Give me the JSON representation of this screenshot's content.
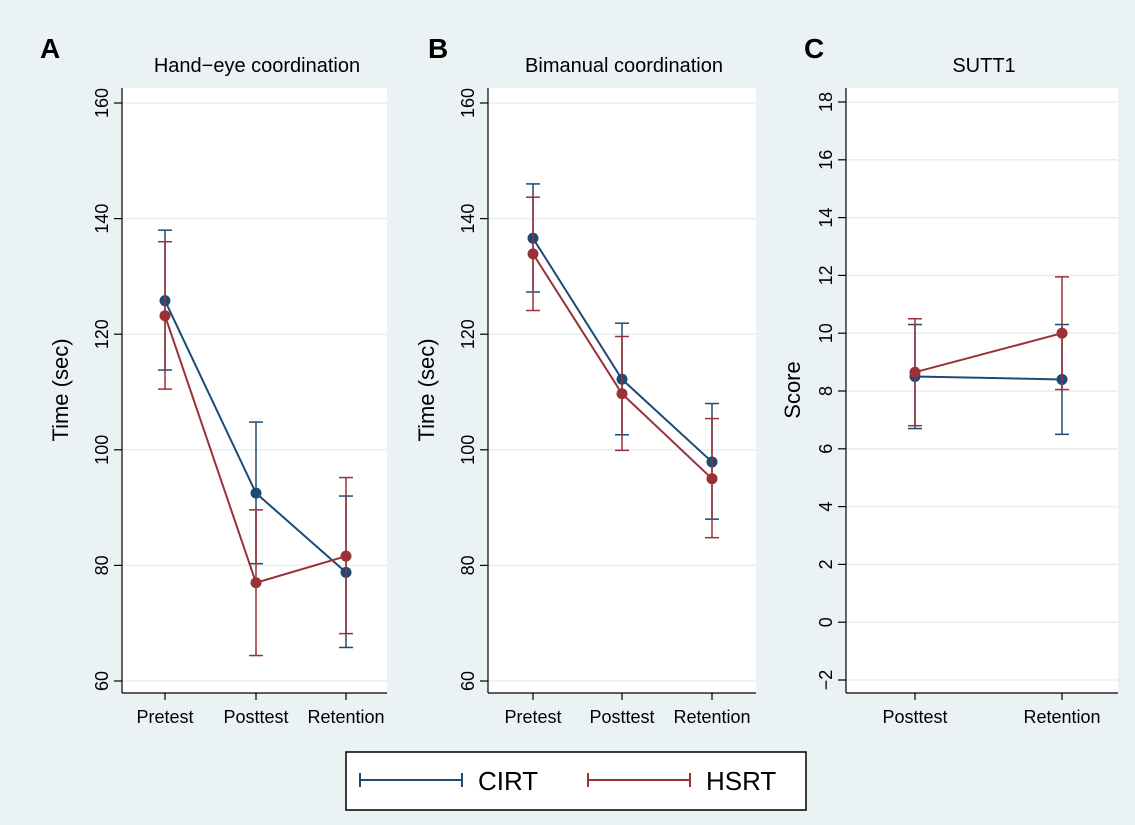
{
  "colors": {
    "background": "#eaf2f3",
    "plot_background": "#ffffff",
    "grid": "#e7eeef",
    "axis": "#000000",
    "CIRT": "#1b4b75",
    "HSRT": "#9a3136"
  },
  "legend": {
    "position": "bottom",
    "entries": [
      {
        "label": "CIRT",
        "color": "#1b4b75"
      },
      {
        "label": "HSRT",
        "color": "#9a3136"
      }
    ]
  },
  "chart_data": [
    {
      "type": "line",
      "panel_label": "A",
      "title": "Hand−eye coordination",
      "ylabel": "Time (sec)",
      "ylim": [
        60,
        160
      ],
      "yticks": [
        "60",
        "80",
        "100",
        "120",
        "140",
        "160"
      ],
      "categories": [
        "Pretest",
        "Posttest",
        "Retention"
      ],
      "grid": true,
      "error_bars": true,
      "series": [
        {
          "name": "CIRT",
          "values": [
            125.8,
            92.5,
            78.8
          ],
          "lower": [
            113.8,
            80.3,
            65.8
          ],
          "upper": [
            138.0,
            104.8,
            92.0
          ]
        },
        {
          "name": "HSRT",
          "values": [
            123.2,
            77.0,
            81.6
          ],
          "lower": [
            110.5,
            64.4,
            68.2
          ],
          "upper": [
            136.0,
            89.6,
            95.2
          ]
        }
      ]
    },
    {
      "type": "line",
      "panel_label": "B",
      "title": "Bimanual coordination",
      "ylabel": "Time (sec)",
      "ylim": [
        60,
        160
      ],
      "yticks": [
        "60",
        "80",
        "100",
        "120",
        "140",
        "160"
      ],
      "categories": [
        "Pretest",
        "Posttest",
        "Retention"
      ],
      "grid": true,
      "error_bars": true,
      "series": [
        {
          "name": "CIRT",
          "values": [
            136.6,
            112.2,
            97.9
          ],
          "lower": [
            127.3,
            102.6,
            88.0
          ],
          "upper": [
            146.0,
            121.9,
            108.0
          ]
        },
        {
          "name": "HSRT",
          "values": [
            133.9,
            109.7,
            95.0
          ],
          "lower": [
            124.1,
            99.9,
            84.8
          ],
          "upper": [
            143.7,
            119.6,
            105.4
          ]
        }
      ]
    },
    {
      "type": "line",
      "panel_label": "C",
      "title": "SUTT1",
      "ylabel": "Score",
      "ylim": [
        -2,
        18
      ],
      "yticks": [
        "−2",
        "0",
        "2",
        "4",
        "6",
        "8",
        "10",
        "12",
        "14",
        "16",
        "18"
      ],
      "categories": [
        "Posttest",
        "Retention"
      ],
      "grid": true,
      "error_bars": true,
      "series": [
        {
          "name": "CIRT",
          "values": [
            8.5,
            8.4
          ],
          "lower": [
            6.7,
            6.5
          ],
          "upper": [
            10.3,
            10.3
          ]
        },
        {
          "name": "HSRT",
          "values": [
            8.65,
            10.0
          ],
          "lower": [
            6.8,
            8.05
          ],
          "upper": [
            10.5,
            11.95
          ]
        }
      ]
    }
  ]
}
